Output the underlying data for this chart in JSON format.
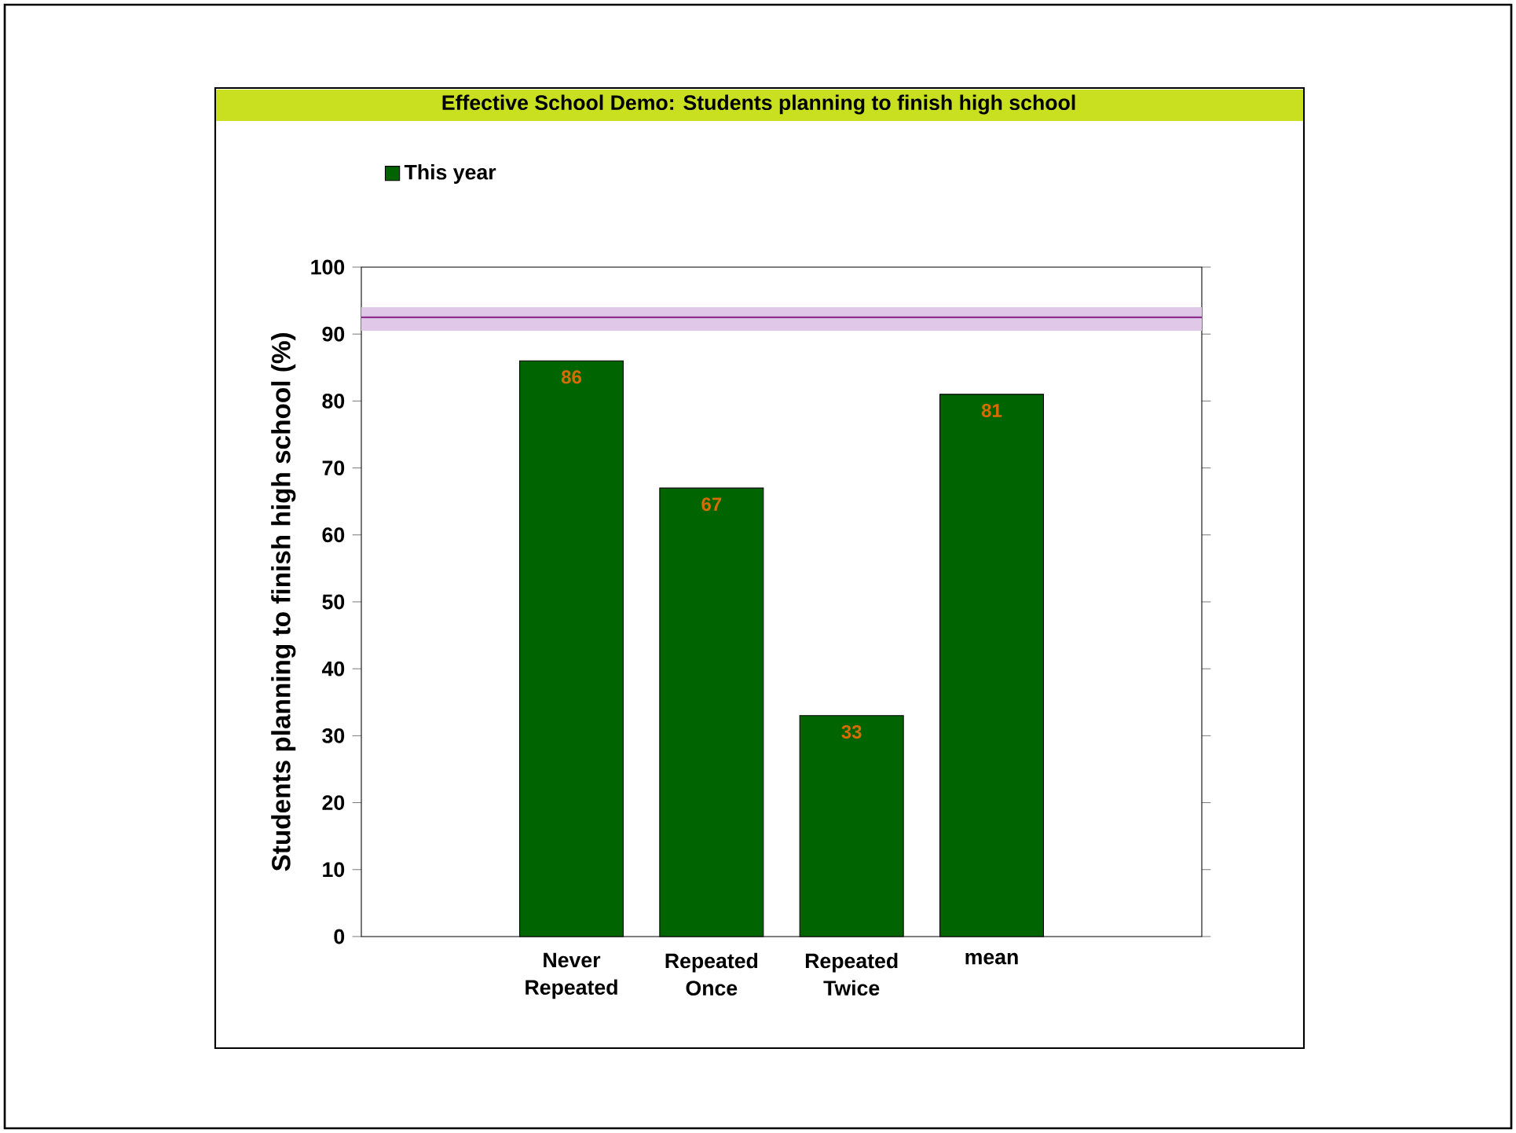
{
  "chart_data": {
    "type": "bar",
    "title": "Effective School Demo: Students planning to finish high school",
    "ylabel": "Students planning to finish high school (%)",
    "categories": [
      "Never Repeated",
      "Repeated Once",
      "Repeated Twice",
      "mean"
    ],
    "series": [
      {
        "name": "This year",
        "color": "#006400",
        "values": [
          86,
          67,
          33,
          81
        ]
      }
    ],
    "ylim": [
      0,
      100
    ],
    "yticks": [
      0,
      10,
      20,
      30,
      40,
      50,
      60,
      70,
      80,
      90,
      100
    ],
    "data_labels": true,
    "legend": "top left",
    "ref_lines": [
      {
        "axis": "y",
        "value": 92.5,
        "color": "#903090"
      }
    ],
    "bands": [
      {
        "axis": "y",
        "from": 90.5,
        "to": 94,
        "color": "#e0c8e8"
      }
    ]
  }
}
